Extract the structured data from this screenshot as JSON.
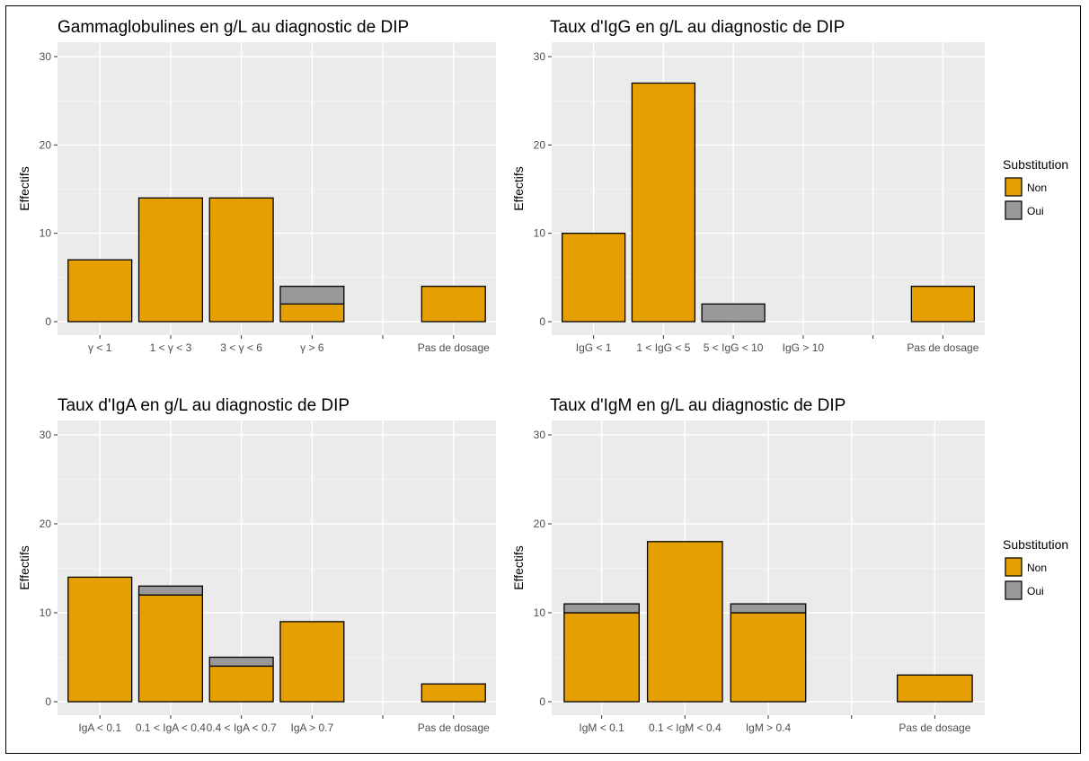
{
  "colors": {
    "Non": "#E69F00",
    "Oui": "#999999",
    "panel_bg": "#EBEBEB",
    "grid": "#FFFFFF"
  },
  "chart_data": [
    {
      "type": "bar",
      "stacked": true,
      "title": "Gammaglobulines en g/L au diagnostic de DIP",
      "ylabel": "Effectifs",
      "xlabel": "",
      "ylim": [
        0,
        30
      ],
      "yticks": [
        0,
        10,
        20,
        30
      ],
      "grid": true,
      "categories": [
        "γ < 1",
        "1 < γ < 3",
        "3 < γ < 6",
        "γ > 6",
        "",
        "Pas de dosage"
      ],
      "series": [
        {
          "name": "Non",
          "values": [
            7,
            14,
            14,
            2,
            0,
            4
          ]
        },
        {
          "name": "Oui",
          "values": [
            0,
            0,
            0,
            2,
            0,
            0
          ]
        }
      ]
    },
    {
      "type": "bar",
      "stacked": true,
      "title": "Taux d'IgG en g/L au diagnostic de DIP",
      "ylabel": "Effectifs",
      "xlabel": "",
      "ylim": [
        0,
        30
      ],
      "yticks": [
        0,
        10,
        20,
        30
      ],
      "grid": true,
      "categories": [
        "IgG < 1",
        "1 < IgG < 5",
        "5 < IgG < 10",
        "IgG > 10",
        "",
        "Pas de dosage"
      ],
      "series": [
        {
          "name": "Non",
          "values": [
            10,
            27,
            0,
            0,
            0,
            4
          ]
        },
        {
          "name": "Oui",
          "values": [
            0,
            0,
            2,
            0,
            0,
            0
          ]
        }
      ]
    },
    {
      "type": "bar",
      "stacked": true,
      "title": "Taux d'IgA en g/L au diagnostic de DIP",
      "ylabel": "Effectifs",
      "xlabel": "",
      "ylim": [
        0,
        30
      ],
      "yticks": [
        0,
        10,
        20,
        30
      ],
      "grid": true,
      "categories": [
        "IgA < 0.1",
        "0.1 < IgA < 0.4",
        "0.4 < IgA < 0.7",
        "IgA > 0.7",
        "",
        "Pas de dosage"
      ],
      "series": [
        {
          "name": "Non",
          "values": [
            14,
            12,
            4,
            9,
            0,
            2
          ]
        },
        {
          "name": "Oui",
          "values": [
            0,
            1,
            1,
            0,
            0,
            0
          ]
        }
      ]
    },
    {
      "type": "bar",
      "stacked": true,
      "title": "Taux d'IgM en g/L au diagnostic de DIP",
      "ylabel": "Effectifs",
      "xlabel": "",
      "ylim": [
        0,
        30
      ],
      "yticks": [
        0,
        10,
        20,
        30
      ],
      "grid": true,
      "categories": [
        "IgM < 0.1",
        "0.1 < IgM < 0.4",
        "IgM > 0.4",
        "",
        "Pas de dosage"
      ],
      "series": [
        {
          "name": "Non",
          "values": [
            10,
            18,
            10,
            0,
            3
          ]
        },
        {
          "name": "Oui",
          "values": [
            1,
            0,
            1,
            0,
            0
          ]
        }
      ]
    }
  ],
  "legends": [
    {
      "title": "Substitution",
      "entries": [
        "Non",
        "Oui"
      ],
      "placement": "right"
    },
    {
      "title": "Substitution",
      "entries": [
        "Non",
        "Oui"
      ],
      "placement": "right"
    }
  ]
}
